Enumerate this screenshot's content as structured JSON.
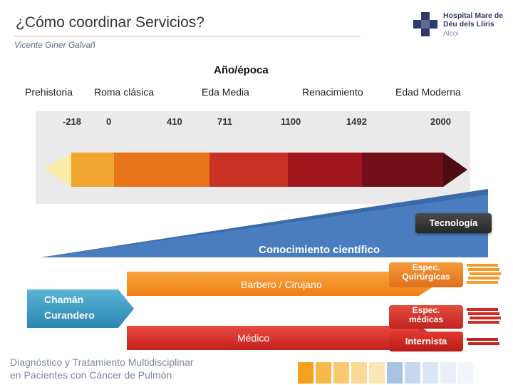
{
  "header": {
    "title": "¿Cómo coordinar Servicios?",
    "author": "Vicente Giner Galvañ"
  },
  "logo": {
    "icon": "medical-cross-icon",
    "line1": "Hospital Mare de",
    "line2": "Déu dels Lliris",
    "line3": "Alcoi"
  },
  "timeline": {
    "axis_title": "Año/época",
    "eras": [
      "Prehistoria",
      "Roma clásica",
      "Eda Media",
      "Renacimiento",
      "Edad Moderna"
    ],
    "years": [
      "-218",
      "0",
      "410",
      "711",
      "1100",
      "1492",
      "2000"
    ],
    "segment_colors": [
      "#fcecaa",
      "#f0a630",
      "#e8751c",
      "#c73224",
      "#a2161d",
      "#72101a",
      "#4e0b12"
    ]
  },
  "diagram": {
    "tecnologia": "Tecnología",
    "conocimiento": "Conocimiento científico",
    "chaman": [
      "Chamán",
      "Curandero"
    ],
    "barbero": "Barbero / Cirujano",
    "medico": "Médico",
    "espec_quirurgicas": [
      "Espec.",
      "Quirúrgicas"
    ],
    "espec_medicas": [
      "Espec.",
      "médicas"
    ],
    "internista": "Internista"
  },
  "footer": {
    "line1": "Diagnóstico y Tratamiento Multidisciplinar",
    "line2": "en Pacientes con Cáncer de Pulmón",
    "square_colors": [
      "#f3a11e",
      "#f7b84a",
      "#f9c872",
      "#fbd895",
      "#fde6b6",
      "#a9c4e3",
      "#c6d8ee",
      "#dae6f4",
      "#e8eff8",
      "#f2f6fb"
    ]
  }
}
